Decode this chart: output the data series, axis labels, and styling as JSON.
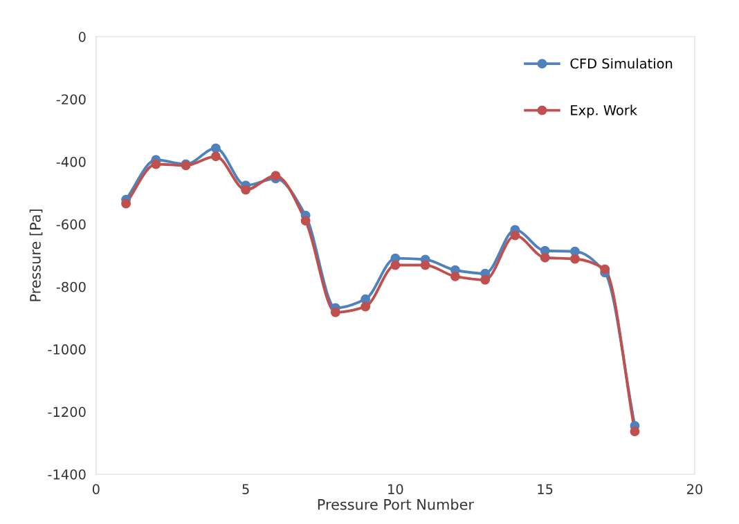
{
  "chart_data": {
    "type": "line",
    "xlabel": "Pressure Port Number",
    "ylabel": "Pressure [Pa]",
    "x": [
      1,
      2,
      3,
      4,
      5,
      6,
      7,
      8,
      9,
      10,
      11,
      12,
      13,
      14,
      15,
      16,
      17,
      18
    ],
    "series": [
      {
        "name": "CFD Simulation",
        "color": "#4f81bd",
        "values": [
          -521,
          -394,
          -408,
          -357,
          -476,
          -454,
          -572,
          -868,
          -840,
          -709,
          -713,
          -747,
          -758,
          -618,
          -685,
          -687,
          -755,
          -1245
        ]
      },
      {
        "name": "Exp. Work",
        "color": "#c0504d",
        "values": [
          -534,
          -408,
          -412,
          -383,
          -490,
          -445,
          -589,
          -882,
          -864,
          -731,
          -731,
          -767,
          -778,
          -636,
          -707,
          -711,
          -744,
          -1263
        ]
      }
    ],
    "xlim": [
      0,
      20
    ],
    "xticks": [
      0,
      5,
      10,
      15,
      20
    ],
    "ylim": [
      -1400,
      0
    ],
    "yticks": [
      -1400,
      -1200,
      -1000,
      -800,
      -600,
      -400,
      -200,
      0
    ],
    "marker": "circle",
    "line_style": "solid",
    "grid": false,
    "legend": "top right"
  }
}
